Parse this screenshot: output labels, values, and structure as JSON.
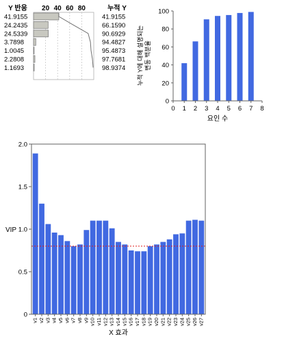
{
  "chart_data": [
    {
      "type": "table",
      "columns": [
        "Y 반응",
        "",
        "누적 Y"
      ],
      "axis_ticks": [
        20,
        40,
        60,
        80
      ],
      "y_response": [
        41.9155,
        24.2435,
        24.5339,
        3.7898,
        1.0045,
        2.2808,
        1.1693
      ],
      "cumulative_y": [
        41.9155,
        66.159,
        90.6929,
        94.4827,
        95.4873,
        97.7681,
        98.9374
      ],
      "y_response_text": [
        "41.9155",
        "24.2435",
        "24.5339",
        "3.7898",
        "1.0045",
        "2.2808",
        "1.1693"
      ],
      "cumulative_y_text": [
        "41.9155",
        "66.1590",
        "90.6929",
        "94.4827",
        "95.4873",
        "97.7681",
        "98.9374"
      ],
      "bar_color": "#c8c8c0"
    },
    {
      "type": "bar",
      "x": [
        1,
        2,
        3,
        4,
        5,
        6,
        7
      ],
      "values": [
        41.9155,
        66.159,
        90.6929,
        94.4827,
        95.4873,
        97.7681,
        98.9374
      ],
      "xlabel": "요인 수",
      "ylabel_lines": [
        "누적 Y에 대해 설명되는",
        "변동 백분율"
      ],
      "xlim": [
        0,
        8
      ],
      "ylim": [
        0,
        100
      ],
      "xticks": [
        0,
        1,
        2,
        3,
        4,
        5,
        6,
        7,
        8
      ],
      "yticks": [
        0,
        20,
        40,
        60,
        80,
        100
      ],
      "bar_color": "#4169e1"
    },
    {
      "type": "bar",
      "categories": [
        "v1",
        "v2",
        "v3",
        "v4",
        "v5",
        "v6",
        "v7",
        "v8",
        "v9",
        "v10",
        "v11",
        "v12",
        "v13",
        "v14",
        "v15",
        "v16",
        "v17",
        "v18",
        "v19",
        "v20",
        "v21",
        "v22",
        "v23",
        "v24",
        "v25",
        "v26",
        "v27"
      ],
      "values": [
        1.89,
        1.3,
        1.06,
        0.96,
        0.93,
        0.86,
        0.8,
        0.82,
        0.99,
        1.1,
        1.1,
        1.1,
        1.01,
        0.85,
        0.82,
        0.75,
        0.74,
        0.74,
        0.8,
        0.82,
        0.85,
        0.88,
        0.94,
        0.95,
        1.1,
        1.11,
        1.1
      ],
      "xlabel": "X 효과",
      "ylabel": "VIP",
      "ylim": [
        0,
        2.0
      ],
      "yticks": [
        "0",
        "0.5",
        "1.0",
        "1.5",
        "2.0"
      ],
      "threshold": 0.8,
      "bar_color": "#4169e1",
      "threshold_color": "#e02020"
    }
  ]
}
